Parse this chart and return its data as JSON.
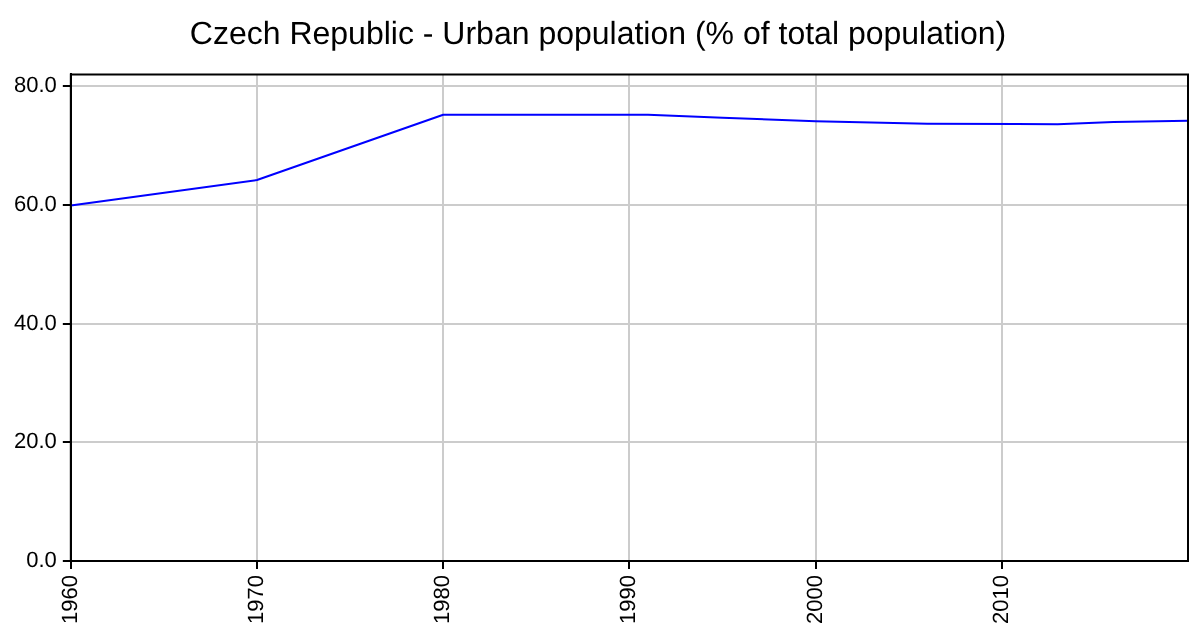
{
  "chart_data": {
    "type": "line",
    "title": "Czech Republic - Urban population (% of total population)",
    "x": [
      1960,
      1970,
      1980,
      1991,
      1995,
      2000,
      2006,
      2013,
      2016,
      2020
    ],
    "series": [
      {
        "color": "#0000ff",
        "values": [
          59.9,
          64.2,
          75.2,
          75.2,
          74.7,
          74.1,
          73.7,
          73.6,
          74.0,
          74.2
        ]
      }
    ],
    "xlim": [
      1960,
      2020
    ],
    "xticks": [
      1960,
      1970,
      1980,
      1990,
      2000,
      2010
    ],
    "ylim": [
      0,
      82
    ],
    "yticks": [
      {
        "value": 0,
        "label": "0.0"
      },
      {
        "value": 20,
        "label": "20.0"
      },
      {
        "value": 40,
        "label": "40.0"
      },
      {
        "value": 60,
        "label": "60.0"
      },
      {
        "value": 80,
        "label": "80.0"
      }
    ],
    "grid": true,
    "legend": false,
    "marker": "none",
    "line_style": "solid"
  }
}
